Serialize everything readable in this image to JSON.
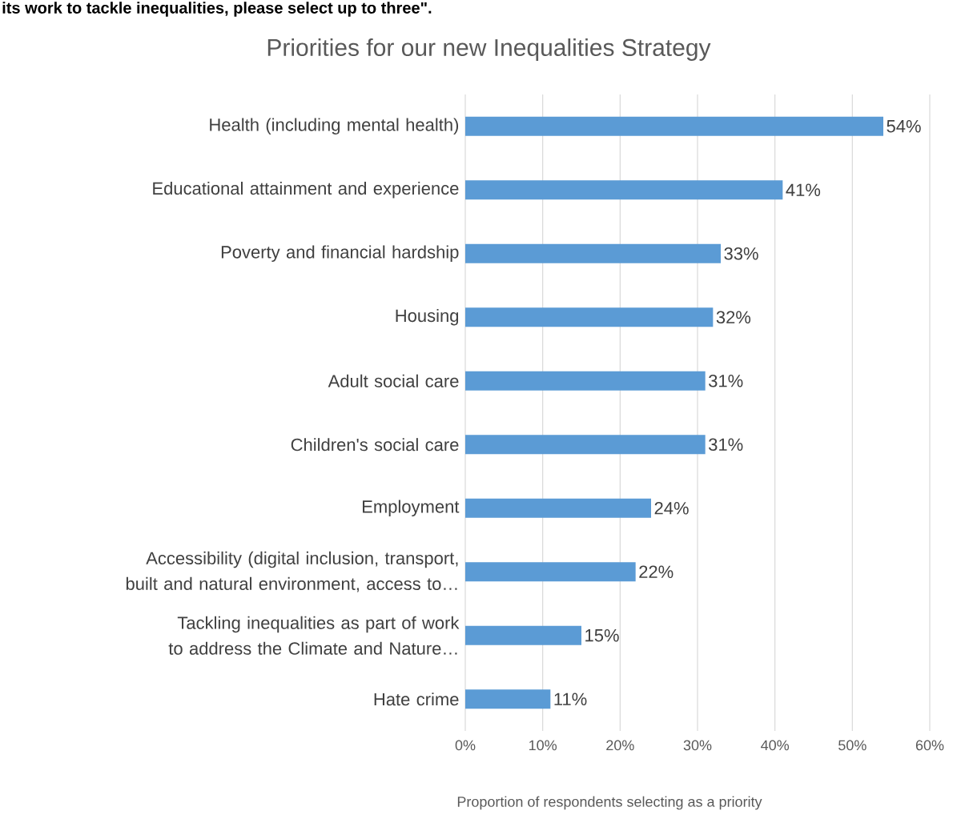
{
  "chart_data": {
    "type": "bar",
    "orientation": "horizontal",
    "title": "Priorities for our new Inequalities Strategy",
    "xlabel": "Proportion of respondents selecting as a priority",
    "annotations": [
      "its work to tackle inequalities, please select up to three\"."
    ],
    "categories": [
      "Health (including mental health)",
      "Educational attainment and experience",
      "Poverty and financial hardship",
      "Housing",
      "Adult social care",
      "Children's social care",
      "Employment",
      "Accessibility (digital inclusion, transport, built and natural environment, access to…",
      "Tackling inequalities as part of work to address the Climate and Nature…",
      "Hate crime"
    ],
    "values": [
      54,
      41,
      33,
      32,
      31,
      31,
      24,
      22,
      15,
      11
    ],
    "value_labels": [
      "54%",
      "41%",
      "33%",
      "32%",
      "31%",
      "31%",
      "24%",
      "22%",
      "15%",
      "11%"
    ],
    "color": "#5b9bd5",
    "xlim": [
      0,
      60
    ],
    "xticks": [
      {
        "value": 0,
        "label": "0%"
      },
      {
        "value": 10,
        "label": "10%"
      },
      {
        "value": 20,
        "label": "20%"
      },
      {
        "value": 30,
        "label": "30%"
      },
      {
        "value": 40,
        "label": "40%"
      },
      {
        "value": 50,
        "label": "50%"
      },
      {
        "value": 60,
        "label": "60%"
      }
    ],
    "grid": "x"
  }
}
